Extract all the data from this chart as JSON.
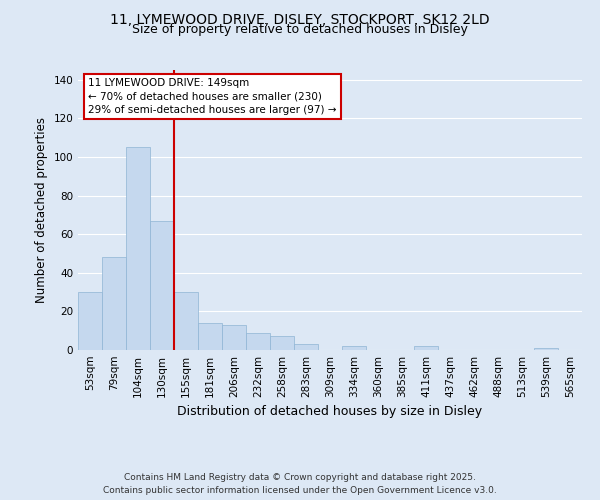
{
  "title1": "11, LYMEWOOD DRIVE, DISLEY, STOCKPORT, SK12 2LD",
  "title2": "Size of property relative to detached houses in Disley",
  "xlabel": "Distribution of detached houses by size in Disley",
  "ylabel": "Number of detached properties",
  "bar_labels": [
    "53sqm",
    "79sqm",
    "104sqm",
    "130sqm",
    "155sqm",
    "181sqm",
    "206sqm",
    "232sqm",
    "258sqm",
    "283sqm",
    "309sqm",
    "334sqm",
    "360sqm",
    "385sqm",
    "411sqm",
    "437sqm",
    "462sqm",
    "488sqm",
    "513sqm",
    "539sqm",
    "565sqm"
  ],
  "bar_values": [
    30,
    48,
    105,
    67,
    30,
    14,
    13,
    9,
    7,
    3,
    0,
    2,
    0,
    0,
    2,
    0,
    0,
    0,
    0,
    1,
    0
  ],
  "bar_color": "#c5d8ee",
  "bar_edge_color": "#8fb4d4",
  "ylim": [
    0,
    145
  ],
  "yticks": [
    0,
    20,
    40,
    60,
    80,
    100,
    120,
    140
  ],
  "red_line_x": 3.5,
  "annotation_title": "11 LYMEWOOD DRIVE: 149sqm",
  "annotation_line1": "← 70% of detached houses are smaller (230)",
  "annotation_line2": "29% of semi-detached houses are larger (97) →",
  "annotation_box_color": "#ffffff",
  "annotation_border_color": "#cc0000",
  "red_line_color": "#cc0000",
  "footer1": "Contains HM Land Registry data © Crown copyright and database right 2025.",
  "footer2": "Contains public sector information licensed under the Open Government Licence v3.0.",
  "bg_color": "#dde8f5",
  "plot_bg_color": "#dde8f5",
  "grid_color": "#ffffff",
  "title_fontsize": 10,
  "subtitle_fontsize": 9,
  "axis_label_fontsize": 8.5,
  "tick_fontsize": 7.5,
  "footer_fontsize": 6.5
}
